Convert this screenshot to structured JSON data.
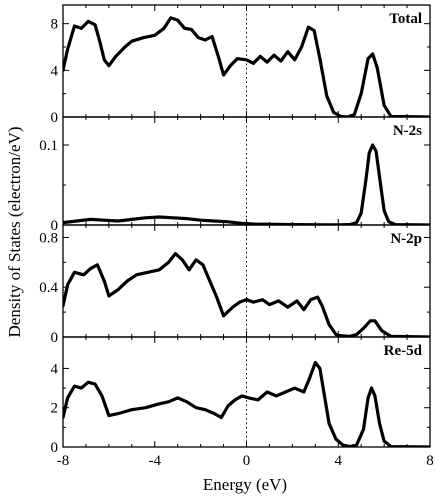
{
  "chart_data": {
    "type": "line",
    "xlabel": "Energy (eV)",
    "ylabel": "Density of States (electron/eV)",
    "xlim": [
      -8,
      8
    ],
    "x_ticks": [
      "-8",
      "-4",
      "0",
      "4",
      "8"
    ],
    "fermi_level_x": 0,
    "panels": [
      {
        "label": "Total",
        "ylim": [
          0,
          9.6
        ],
        "y_ticks": [
          {
            "value": 0,
            "label": "0"
          },
          {
            "value": 4,
            "label": "4"
          },
          {
            "value": 8,
            "label": "8"
          }
        ],
        "x": [
          -8,
          -7.8,
          -7.5,
          -7.2,
          -6.9,
          -6.6,
          -6.4,
          -6.2,
          -6.0,
          -5.7,
          -5.3,
          -5.0,
          -4.5,
          -4.0,
          -3.6,
          -3.3,
          -3.0,
          -2.7,
          -2.4,
          -2.1,
          -1.8,
          -1.5,
          -1.2,
          -1.0,
          -0.7,
          -0.4,
          0,
          0.3,
          0.6,
          0.9,
          1.2,
          1.5,
          1.8,
          2.1,
          2.4,
          2.7,
          2.95,
          3.2,
          3.5,
          3.8,
          4.1,
          4.4,
          4.7,
          5.0,
          5.3,
          5.5,
          5.7,
          6.0,
          6.3,
          8.0
        ],
        "values": [
          4.0,
          5.8,
          7.8,
          7.6,
          8.2,
          7.9,
          6.5,
          4.9,
          4.4,
          5.2,
          6.0,
          6.5,
          6.8,
          7.0,
          7.6,
          8.5,
          8.3,
          7.6,
          7.5,
          6.8,
          6.6,
          6.9,
          5.0,
          3.6,
          4.4,
          5.0,
          4.9,
          4.6,
          5.2,
          4.7,
          5.3,
          4.8,
          5.6,
          4.9,
          6.0,
          7.7,
          7.4,
          5.0,
          1.8,
          0.4,
          0.05,
          0.0,
          0.2,
          2.0,
          5.0,
          5.4,
          4.2,
          1.0,
          0.05,
          0.0
        ]
      },
      {
        "label": "N-2s",
        "ylim": [
          0,
          0.135
        ],
        "y_ticks": [
          {
            "value": 0,
            "label": "0"
          },
          {
            "value": 0.1,
            "label": "0.1"
          }
        ],
        "x": [
          -8,
          -7.4,
          -6.8,
          -6.2,
          -5.6,
          -5.0,
          -4.4,
          -3.8,
          -3.2,
          -2.6,
          -2.0,
          -1.4,
          -0.8,
          -0.2,
          0.4,
          1.0,
          1.6,
          2.2,
          2.8,
          3.4,
          4.0,
          4.5,
          4.8,
          5.0,
          5.2,
          5.35,
          5.5,
          5.65,
          5.8,
          6.0,
          6.2,
          6.5,
          8.0
        ],
        "values": [
          0.003,
          0.005,
          0.007,
          0.006,
          0.005,
          0.007,
          0.009,
          0.01,
          0.009,
          0.008,
          0.006,
          0.005,
          0.004,
          0.002,
          0.001,
          0.001,
          0.0007,
          0.0005,
          0.0004,
          0.0002,
          0.0002,
          0.0005,
          0.003,
          0.015,
          0.055,
          0.09,
          0.1,
          0.092,
          0.06,
          0.018,
          0.004,
          0.0005,
          0.0
        ]
      },
      {
        "label": "N-2p",
        "ylim": [
          0,
          0.9
        ],
        "y_ticks": [
          {
            "value": 0,
            "label": "0"
          },
          {
            "value": 0.4,
            "label": "0.4"
          },
          {
            "value": 0.8,
            "label": "0.8"
          }
        ],
        "x": [
          -8,
          -7.8,
          -7.5,
          -7.1,
          -6.8,
          -6.5,
          -6.2,
          -6.0,
          -5.6,
          -5.2,
          -4.8,
          -4.3,
          -3.8,
          -3.4,
          -3.1,
          -2.8,
          -2.5,
          -2.2,
          -1.9,
          -1.6,
          -1.3,
          -1.0,
          -0.6,
          -0.3,
          0,
          0.3,
          0.7,
          1.0,
          1.4,
          1.8,
          2.2,
          2.5,
          2.8,
          3.1,
          3.3,
          3.6,
          3.9,
          4.1,
          4.5,
          4.8,
          5.1,
          5.4,
          5.6,
          5.9,
          6.3,
          8.0
        ],
        "values": [
          0.25,
          0.42,
          0.52,
          0.5,
          0.55,
          0.58,
          0.45,
          0.33,
          0.38,
          0.45,
          0.5,
          0.52,
          0.54,
          0.6,
          0.67,
          0.62,
          0.54,
          0.62,
          0.58,
          0.45,
          0.32,
          0.17,
          0.24,
          0.28,
          0.3,
          0.28,
          0.3,
          0.26,
          0.29,
          0.24,
          0.29,
          0.22,
          0.3,
          0.32,
          0.25,
          0.1,
          0.02,
          0.01,
          0.005,
          0.02,
          0.07,
          0.13,
          0.13,
          0.05,
          0.005,
          0.0
        ]
      },
      {
        "label": "Re-5d",
        "ylim": [
          0,
          5.6
        ],
        "y_ticks": [
          {
            "value": 0,
            "label": "0"
          },
          {
            "value": 2,
            "label": "2"
          },
          {
            "value": 4,
            "label": "4"
          }
        ],
        "x": [
          -8,
          -7.8,
          -7.5,
          -7.2,
          -6.9,
          -6.6,
          -6.3,
          -6.0,
          -5.6,
          -5.0,
          -4.4,
          -3.8,
          -3.4,
          -3.0,
          -2.6,
          -2.2,
          -1.8,
          -1.4,
          -1.1,
          -0.8,
          -0.5,
          -0.2,
          0.1,
          0.5,
          0.9,
          1.3,
          1.7,
          2.1,
          2.5,
          2.75,
          3.0,
          3.2,
          3.4,
          3.6,
          3.9,
          4.2,
          4.5,
          4.8,
          5.1,
          5.3,
          5.45,
          5.6,
          5.8,
          6.0,
          6.3,
          8.0
        ],
        "values": [
          1.5,
          2.5,
          3.1,
          3.0,
          3.3,
          3.2,
          2.6,
          1.6,
          1.7,
          1.9,
          2.0,
          2.2,
          2.3,
          2.5,
          2.3,
          2.0,
          1.9,
          1.7,
          1.5,
          2.1,
          2.4,
          2.6,
          2.5,
          2.4,
          2.8,
          2.6,
          2.8,
          3.0,
          2.8,
          3.5,
          4.3,
          4.0,
          2.6,
          1.2,
          0.4,
          0.1,
          0.02,
          0.1,
          0.9,
          2.5,
          3.0,
          2.6,
          1.2,
          0.3,
          0.02,
          0.0
        ]
      }
    ]
  }
}
